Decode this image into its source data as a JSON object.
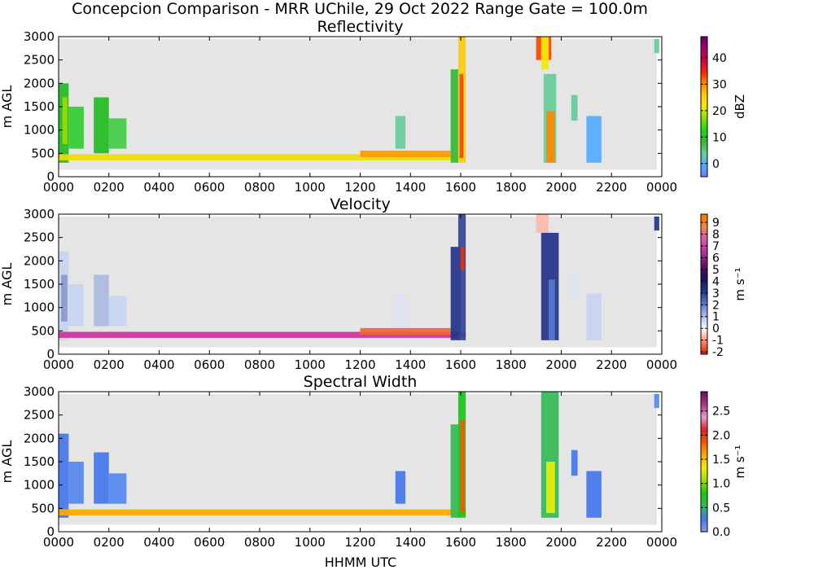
{
  "figure": {
    "suptitle": "Concepcion Comparison - MRR UChile, 29 Oct 2022 Range Gate = 100.0m",
    "xlabel": "HHMM UTC"
  },
  "chart_data": [
    {
      "type": "heatmap",
      "title": "Reflectivity",
      "ylabel": "m AGL",
      "xlim": [
        0,
        2400
      ],
      "ylim": [
        0,
        3000
      ],
      "xticks": [
        "0000",
        "0200",
        "0400",
        "0600",
        "0800",
        "1000",
        "1200",
        "1400",
        "1600",
        "1800",
        "2000",
        "2200",
        "0000"
      ],
      "yticks": [
        "0",
        "500",
        "1000",
        "1500",
        "2000",
        "2500",
        "3000"
      ],
      "background_color": "#e5e5e5",
      "colorbar": {
        "label": "dBZ",
        "range": [
          -5,
          48
        ],
        "ticks": [
          "0",
          "10",
          "20",
          "30",
          "40"
        ],
        "stops": [
          "#7777ff",
          "#55aaff",
          "#66cc99",
          "#33bb33",
          "#11dd11",
          "#88dd00",
          "#eeee00",
          "#ffcc00",
          "#ff8800",
          "#ff2200",
          "#cc0044",
          "#aa0066",
          "#660066"
        ]
      },
      "regions": [
        {
          "x0": 0,
          "x1": 40,
          "y0": 300,
          "y1": 2000,
          "color": "#22bb22"
        },
        {
          "x0": 15,
          "x1": 35,
          "y0": 700,
          "y1": 1700,
          "color": "#99dd00"
        },
        {
          "x0": 40,
          "x1": 100,
          "y0": 600,
          "y1": 1500,
          "color": "#33cc33"
        },
        {
          "x0": 140,
          "x1": 200,
          "y0": 500,
          "y1": 1700,
          "color": "#22bb22"
        },
        {
          "x0": 200,
          "x1": 270,
          "y0": 600,
          "y1": 1250,
          "color": "#44cc44"
        },
        {
          "x0": 0,
          "x1": 1620,
          "y0": 350,
          "y1": 480,
          "color": "#eedd00"
        },
        {
          "x0": 1200,
          "x1": 1560,
          "y0": 420,
          "y1": 560,
          "color": "#ff9900"
        },
        {
          "x0": 1340,
          "x1": 1380,
          "y0": 600,
          "y1": 1300,
          "color": "#66cc99"
        },
        {
          "x0": 1560,
          "x1": 1590,
          "y0": 300,
          "y1": 2300,
          "color": "#33bb33"
        },
        {
          "x0": 1590,
          "x1": 1620,
          "y0": 300,
          "y1": 3000,
          "color": "#ffcc00"
        },
        {
          "x0": 1595,
          "x1": 1610,
          "y0": 400,
          "y1": 2200,
          "color": "#ff4400"
        },
        {
          "x0": 1900,
          "x1": 1960,
          "y0": 2500,
          "y1": 3000,
          "color": "#ff4400"
        },
        {
          "x0": 1920,
          "x1": 1950,
          "y0": 2300,
          "y1": 3000,
          "color": "#eeee00"
        },
        {
          "x0": 1930,
          "x1": 1980,
          "y0": 300,
          "y1": 2200,
          "color": "#66cc99"
        },
        {
          "x0": 1940,
          "x1": 1975,
          "y0": 300,
          "y1": 1400,
          "color": "#ff8800"
        },
        {
          "x0": 2040,
          "x1": 2065,
          "y0": 1200,
          "y1": 1750,
          "color": "#66cc99"
        },
        {
          "x0": 2100,
          "x1": 2160,
          "y0": 300,
          "y1": 1300,
          "color": "#55aaff"
        },
        {
          "x0": 2370,
          "x1": 2390,
          "y0": 2650,
          "y1": 2950,
          "color": "#66cc99"
        }
      ]
    },
    {
      "type": "heatmap",
      "title": "Velocity",
      "ylabel": "m AGL",
      "xlim": [
        0,
        2400
      ],
      "ylim": [
        0,
        3000
      ],
      "xticks": [
        "0000",
        "0200",
        "0400",
        "0600",
        "0800",
        "1000",
        "1200",
        "1400",
        "1600",
        "1800",
        "2000",
        "2200",
        "0000"
      ],
      "yticks": [
        "0",
        "500",
        "1000",
        "1500",
        "2000",
        "2500",
        "3000"
      ],
      "background_color": "#e5e5e5",
      "colorbar": {
        "label": "m s⁻¹",
        "range": [
          -2.2,
          9.7
        ],
        "ticks": [
          "-2",
          "-1",
          "0",
          "1",
          "2",
          "3",
          "4",
          "5",
          "6",
          "7",
          "8",
          "9"
        ],
        "stops": [
          "#dd2200",
          "#ff8866",
          "#ffffff",
          "#aabbee",
          "#5577cc",
          "#223388",
          "#221155",
          "#661166",
          "#aa3399",
          "#dd55aa",
          "#ee8844",
          "#ff7700"
        ]
      },
      "regions": [
        {
          "x0": 0,
          "x1": 40,
          "y0": 300,
          "y1": 2200,
          "color": "#c8d4f0"
        },
        {
          "x0": 10,
          "x1": 35,
          "y0": 700,
          "y1": 1700,
          "color": "#8899cc"
        },
        {
          "x0": 40,
          "x1": 100,
          "y0": 600,
          "y1": 1500,
          "color": "#c8d4f0"
        },
        {
          "x0": 140,
          "x1": 200,
          "y0": 600,
          "y1": 1700,
          "color": "#aabbe0"
        },
        {
          "x0": 200,
          "x1": 270,
          "y0": 600,
          "y1": 1250,
          "color": "#c8d4f0"
        },
        {
          "x0": 0,
          "x1": 1620,
          "y0": 350,
          "y1": 480,
          "color": "#cc3399"
        },
        {
          "x0": 1200,
          "x1": 1560,
          "y0": 420,
          "y1": 560,
          "color": "#ee6633"
        },
        {
          "x0": 1340,
          "x1": 1380,
          "y0": 600,
          "y1": 1300,
          "color": "#dde4f4"
        },
        {
          "x0": 1560,
          "x1": 1600,
          "y0": 300,
          "y1": 2300,
          "color": "#223388"
        },
        {
          "x0": 1590,
          "x1": 1620,
          "y0": 300,
          "y1": 3000,
          "color": "#334499"
        },
        {
          "x0": 1600,
          "x1": 1615,
          "y0": 1800,
          "y1": 2300,
          "color": "#dd3311"
        },
        {
          "x0": 1900,
          "x1": 1950,
          "y0": 2600,
          "y1": 3000,
          "color": "#ffbbaa"
        },
        {
          "x0": 1920,
          "x1": 1990,
          "y0": 300,
          "y1": 2600,
          "color": "#223388"
        },
        {
          "x0": 1950,
          "x1": 1975,
          "y0": 300,
          "y1": 1600,
          "color": "#5577cc"
        },
        {
          "x0": 2040,
          "x1": 2065,
          "y0": 1200,
          "y1": 1750,
          "color": "#dde4f4"
        },
        {
          "x0": 2100,
          "x1": 2160,
          "y0": 300,
          "y1": 1300,
          "color": "#c8d4f0"
        },
        {
          "x0": 2370,
          "x1": 2390,
          "y0": 2650,
          "y1": 2950,
          "color": "#223388"
        }
      ]
    },
    {
      "type": "heatmap",
      "title": "Spectral Width",
      "ylabel": "m AGL",
      "xlim": [
        0,
        2400
      ],
      "ylim": [
        0,
        3000
      ],
      "xticks": [
        "0000",
        "0200",
        "0400",
        "0600",
        "0800",
        "1000",
        "1200",
        "1400",
        "1600",
        "1800",
        "2000",
        "2200",
        "0000"
      ],
      "yticks": [
        "0",
        "500",
        "1000",
        "1500",
        "2000",
        "2500",
        "3000"
      ],
      "background_color": "#e5e5e5",
      "colorbar": {
        "label": "m s⁻¹",
        "range": [
          0,
          2.9
        ],
        "ticks": [
          "0.0",
          "0.5",
          "1.0",
          "1.5",
          "2.0",
          "2.5"
        ],
        "stops": [
          "#8899ee",
          "#4477ee",
          "#33bb55",
          "#11cc11",
          "#99dd00",
          "#eeee00",
          "#ffaa00",
          "#ff5500",
          "#dd2222",
          "#ee99cc",
          "#aa3388",
          "#661166"
        ]
      },
      "regions": [
        {
          "x0": 0,
          "x1": 40,
          "y0": 300,
          "y1": 2100,
          "color": "#4477ee"
        },
        {
          "x0": 40,
          "x1": 100,
          "y0": 600,
          "y1": 1500,
          "color": "#5588ee"
        },
        {
          "x0": 140,
          "x1": 200,
          "y0": 600,
          "y1": 1700,
          "color": "#4477ee"
        },
        {
          "x0": 200,
          "x1": 270,
          "y0": 600,
          "y1": 1250,
          "color": "#5588ee"
        },
        {
          "x0": 0,
          "x1": 1620,
          "y0": 350,
          "y1": 480,
          "color": "#ffaa00"
        },
        {
          "x0": 1340,
          "x1": 1380,
          "y0": 600,
          "y1": 1300,
          "color": "#4477ee"
        },
        {
          "x0": 1560,
          "x1": 1600,
          "y0": 300,
          "y1": 2300,
          "color": "#33bb55"
        },
        {
          "x0": 1590,
          "x1": 1620,
          "y0": 300,
          "y1": 3000,
          "color": "#11cc11"
        },
        {
          "x0": 1600,
          "x1": 1615,
          "y0": 400,
          "y1": 2400,
          "color": "#ff5500"
        },
        {
          "x0": 1920,
          "x1": 1990,
          "y0": 300,
          "y1": 3000,
          "color": "#33bb55"
        },
        {
          "x0": 1940,
          "x1": 1975,
          "y0": 400,
          "y1": 1500,
          "color": "#eeee00"
        },
        {
          "x0": 2040,
          "x1": 2065,
          "y0": 1200,
          "y1": 1750,
          "color": "#4477ee"
        },
        {
          "x0": 2100,
          "x1": 2160,
          "y0": 300,
          "y1": 1300,
          "color": "#4477ee"
        },
        {
          "x0": 2370,
          "x1": 2390,
          "y0": 2650,
          "y1": 2950,
          "color": "#5588ee"
        }
      ]
    }
  ]
}
